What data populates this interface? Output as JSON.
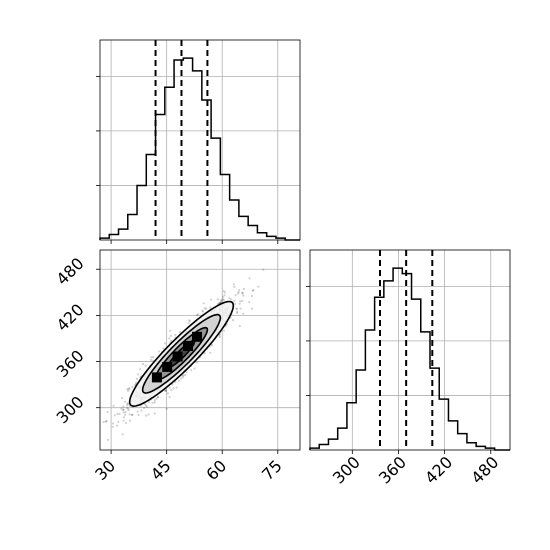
{
  "chart_data": {
    "type": "corner",
    "params": [
      {
        "name": "",
        "range": [
          27,
          81
        ],
        "ticks": [
          30,
          45,
          60,
          75
        ],
        "tick_labels": [
          "30",
          "45",
          "60",
          "75"
        ],
        "quantile_lines": [
          42,
          49,
          56
        ],
        "hist_bins": [
          27,
          29.5,
          32,
          34.5,
          37,
          39.5,
          42,
          44.5,
          47,
          49.5,
          52,
          54.5,
          57,
          59.5,
          62,
          64.5,
          67,
          69.5,
          72,
          74.5,
          77,
          79.5,
          81
        ],
        "hist_counts": [
          0.01,
          0.03,
          0.06,
          0.14,
          0.3,
          0.47,
          0.69,
          0.84,
          0.99,
          1.0,
          0.93,
          0.77,
          0.56,
          0.36,
          0.22,
          0.13,
          0.08,
          0.04,
          0.02,
          0.01,
          0.0,
          0.0
        ],
        "hist_yticks": [
          0.3,
          0.6,
          0.9
        ]
      },
      {
        "name": "",
        "range": [
          245,
          505
        ],
        "ticks": [
          300,
          360,
          420,
          480
        ],
        "tick_labels": [
          "300",
          "360",
          "420",
          "480"
        ],
        "quantile_lines": [
          336,
          370,
          404
        ],
        "hist_bins": [
          245,
          257,
          269,
          281,
          293,
          305,
          317,
          329,
          341,
          353,
          365,
          377,
          389,
          401,
          413,
          425,
          437,
          449,
          461,
          473,
          485,
          497,
          505
        ],
        "hist_counts": [
          0.01,
          0.03,
          0.06,
          0.12,
          0.26,
          0.44,
          0.66,
          0.84,
          0.93,
          1.0,
          0.97,
          0.83,
          0.65,
          0.45,
          0.28,
          0.16,
          0.09,
          0.04,
          0.02,
          0.01,
          0.0,
          0.0
        ],
        "hist_yticks": [
          0.3,
          0.6,
          0.9
        ]
      }
    ],
    "joint": {
      "mean": [
        49,
        370
      ],
      "sd": [
        7,
        34
      ],
      "correlation": 0.92,
      "n_scatter": 1400,
      "contour_sigmas": [
        0.5,
        1.0,
        1.5,
        2.0
      ]
    },
    "grid": true,
    "colors": {
      "line": "#000000",
      "grid": "#b0b0b0",
      "points": "#000000"
    }
  }
}
